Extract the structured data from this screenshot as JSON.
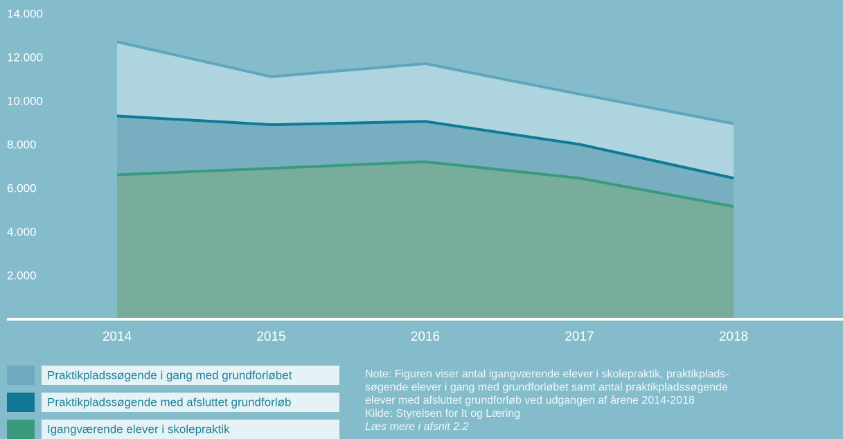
{
  "chart_data": {
    "type": "stacked_area",
    "categories": [
      "2014",
      "2015",
      "2016",
      "2017",
      "2018"
    ],
    "series": [
      {
        "name": "Igangværende elever i skolepraktik",
        "color": "#3a9a7e",
        "fill": "#79ad9b",
        "values": [
          6650,
          6950,
          7250,
          6500,
          5200
        ]
      },
      {
        "name": "Praktikpladssøgende med afsluttet grundforløb",
        "color": "#0e7a96",
        "fill": "#77afc0",
        "values": [
          2700,
          2000,
          1850,
          1550,
          1300
        ]
      },
      {
        "name": "Praktikpladssøgende i gang med grundforløbet",
        "color": "#5ea6bd",
        "fill": "#aed5df",
        "values": [
          3400,
          2200,
          2650,
          2300,
          2500
        ]
      }
    ],
    "ylim": [
      0,
      14000
    ],
    "yticks": [
      {
        "value": 2000,
        "label": "2.000"
      },
      {
        "value": 4000,
        "label": "4.000"
      },
      {
        "value": 6000,
        "label": "6.000"
      },
      {
        "value": 8000,
        "label": "8.000"
      },
      {
        "value": 10000,
        "label": "10.000"
      },
      {
        "value": 12000,
        "label": "12.000"
      },
      {
        "value": 14000,
        "label": "14.000"
      }
    ],
    "note": [
      "Note: Figuren viser antal igangværende elever i skolepraktik, praktikplads-",
      "søgende elever i gang med grundforløbet samt antal praktikpladssøgende",
      "elever med afsluttet grundforløb ved udgangen af årene 2014-2018"
    ],
    "source": "Kilde: Styrelsen for It og Læring",
    "link": "Læs mere i afsnit 2.2"
  }
}
